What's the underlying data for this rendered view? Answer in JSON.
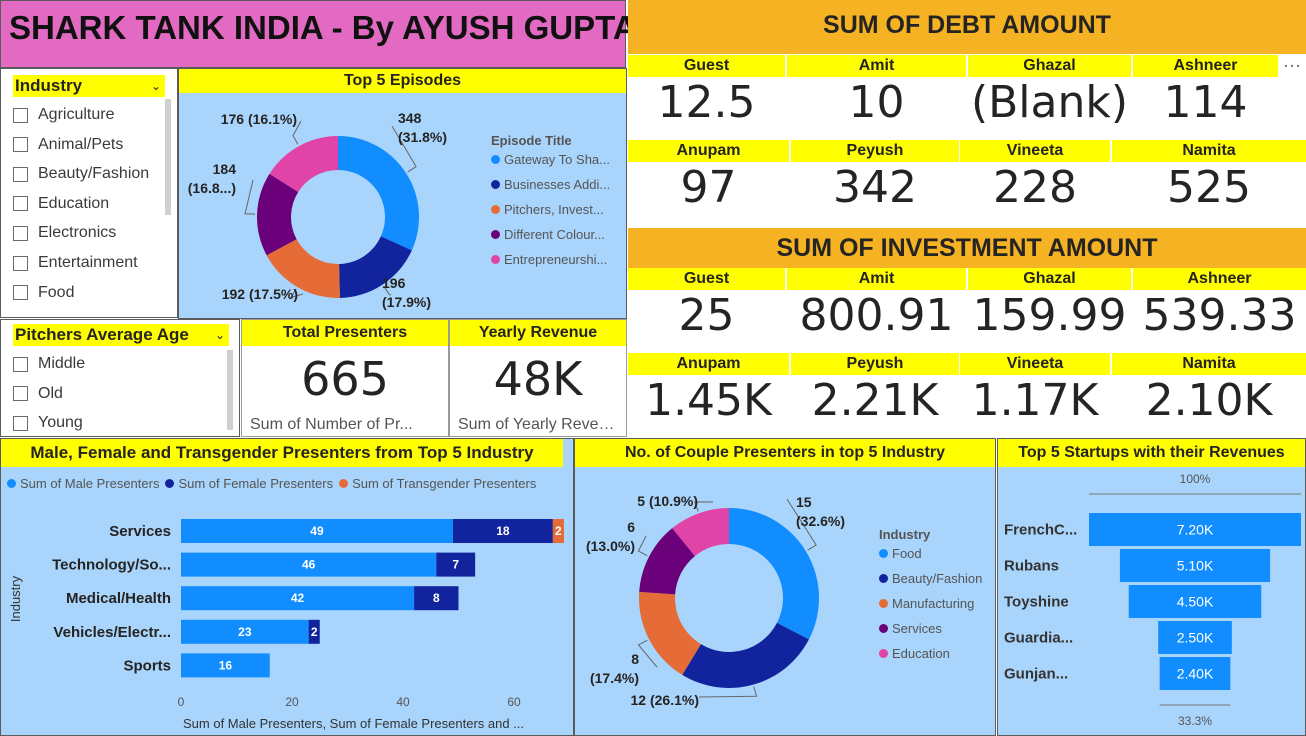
{
  "title": "SHARK TANK INDIA - By AYUSH GUPTA",
  "industry_slicer": {
    "header": "Industry",
    "items": [
      "Agriculture",
      "Animal/Pets",
      "Beauty/Fashion",
      "Education",
      "Electronics",
      "Entertainment",
      "Food"
    ]
  },
  "age_slicer": {
    "header": "Pitchers Average Age",
    "items": [
      "Middle",
      "Old",
      "Young"
    ]
  },
  "colors": {
    "blue": "#118dff",
    "dark_blue": "#12239e",
    "orange": "#e66c37",
    "purple": "#6b007b",
    "pink": "#e044a7",
    "yellow": "#ffff00",
    "amber": "#f5b324",
    "panel_bg": "#a9d4fb"
  },
  "debt": {
    "header": "SUM OF DEBT AMOUNT",
    "row1": [
      {
        "name": "Guest",
        "value": "12.5"
      },
      {
        "name": "Amit",
        "value": "10"
      },
      {
        "name": "Ghazal",
        "value": "(Blank)"
      },
      {
        "name": "Ashneer",
        "value": "114"
      }
    ],
    "row2": [
      {
        "name": "Anupam",
        "value": "97"
      },
      {
        "name": "Peyush",
        "value": "342"
      },
      {
        "name": "Vineeta",
        "value": "228"
      },
      {
        "name": "Namita",
        "value": "525"
      }
    ],
    "more_icon": "more-options-icon",
    "more_glyph": "···"
  },
  "investment": {
    "header": "SUM OF INVESTMENT AMOUNT",
    "row1": [
      {
        "name": "Guest",
        "value": "25"
      },
      {
        "name": "Amit",
        "value": "800.91"
      },
      {
        "name": "Ghazal",
        "value": "159.99"
      },
      {
        "name": "Ashneer",
        "value": "539.33"
      }
    ],
    "row2": [
      {
        "name": "Anupam",
        "value": "1.45K"
      },
      {
        "name": "Peyush",
        "value": "2.21K"
      },
      {
        "name": "Vineeta",
        "value": "1.17K"
      },
      {
        "name": "Namita",
        "value": "2.10K"
      }
    ]
  },
  "total_presenters": {
    "title": "Total Presenters",
    "value": "665",
    "subtitle": "Sum of Number of Pr..."
  },
  "yearly_revenue": {
    "title": "Yearly Revenue",
    "value": "48K",
    "subtitle": "Sum of Yearly Revenue"
  },
  "chart_data": [
    {
      "id": "top5_episodes",
      "type": "pie",
      "title": "Top 5 Episodes",
      "legend_title": "Episode Title",
      "legend_position": "right",
      "slices": [
        {
          "label": "Gateway To Sha...",
          "value": 348,
          "pct": "31.8%",
          "text": "348",
          "text2": "(31.8%)"
        },
        {
          "label": "Businesses Addi...",
          "value": 196,
          "pct": "17.9%",
          "text": "196",
          "text2": "(17.9%)"
        },
        {
          "label": "Pitchers, Invest...",
          "value": 192,
          "pct": "17.5%",
          "text": "192 (17.5%)",
          "text2": ""
        },
        {
          "label": "Different Colour...",
          "value": 184,
          "pct": "16.8...",
          "text": "184",
          "text2": "(16.8...)"
        },
        {
          "label": "Entrepreneurshi...",
          "value": 176,
          "pct": "16.1%",
          "text": "176 (16.1%)",
          "text2": ""
        }
      ]
    },
    {
      "id": "gender_presenters",
      "type": "bar",
      "orientation": "horizontal",
      "stacked": true,
      "title": "Male, Female and Transgender Presenters from Top 5 Industry",
      "ylabel": "Industry",
      "xlabel": "Sum of Male Presenters, Sum of Female Presenters and ...",
      "xlim": [
        0,
        70
      ],
      "xticks": [
        0,
        20,
        40,
        60
      ],
      "legend_position": "top",
      "categories": [
        "Services",
        "Technology/So...",
        "Medical/Health",
        "Vehicles/Electr...",
        "Sports"
      ],
      "series": [
        {
          "name": "Sum of Male Presenters",
          "values": [
            49,
            46,
            42,
            23,
            16
          ]
        },
        {
          "name": "Sum of Female Presenters",
          "values": [
            18,
            7,
            8,
            2,
            0
          ]
        },
        {
          "name": "Sum of Transgender Presenters",
          "values": [
            2,
            0,
            0,
            0,
            0
          ]
        }
      ]
    },
    {
      "id": "couple_presenters",
      "type": "pie",
      "title": "No. of Couple Presenters in top 5 Industry",
      "legend_title": "Industry",
      "legend_position": "right",
      "slices": [
        {
          "label": "Food",
          "value": 15,
          "pct": "32.6%",
          "text": "15",
          "text2": "(32.6%)"
        },
        {
          "label": "Beauty/Fashion",
          "value": 12,
          "pct": "26.1%",
          "text": "12 (26.1%)",
          "text2": ""
        },
        {
          "label": "Manufacturing",
          "value": 8,
          "pct": "17.4%",
          "text": "8",
          "text2": "(17.4%)"
        },
        {
          "label": "Services",
          "value": 6,
          "pct": "13.0%",
          "text": "6",
          "text2": "(13.0%)"
        },
        {
          "label": "Education",
          "value": 5,
          "pct": "10.9%",
          "text": "5 (10.9%)",
          "text2": ""
        }
      ]
    },
    {
      "id": "top5_startups",
      "type": "bar",
      "subtype": "funnel",
      "title": "Top 5 Startups with their Revenues",
      "top_label": "100%",
      "bottom_label": "33.3%",
      "categories": [
        "FrenchC...",
        "Rubans",
        "Toyshine",
        "Guardia...",
        "Gunjan..."
      ],
      "values": [
        7200,
        5100,
        4500,
        2500,
        2400
      ],
      "value_labels": [
        "7.20K",
        "5.10K",
        "4.50K",
        "2.50K",
        "2.40K"
      ]
    }
  ]
}
